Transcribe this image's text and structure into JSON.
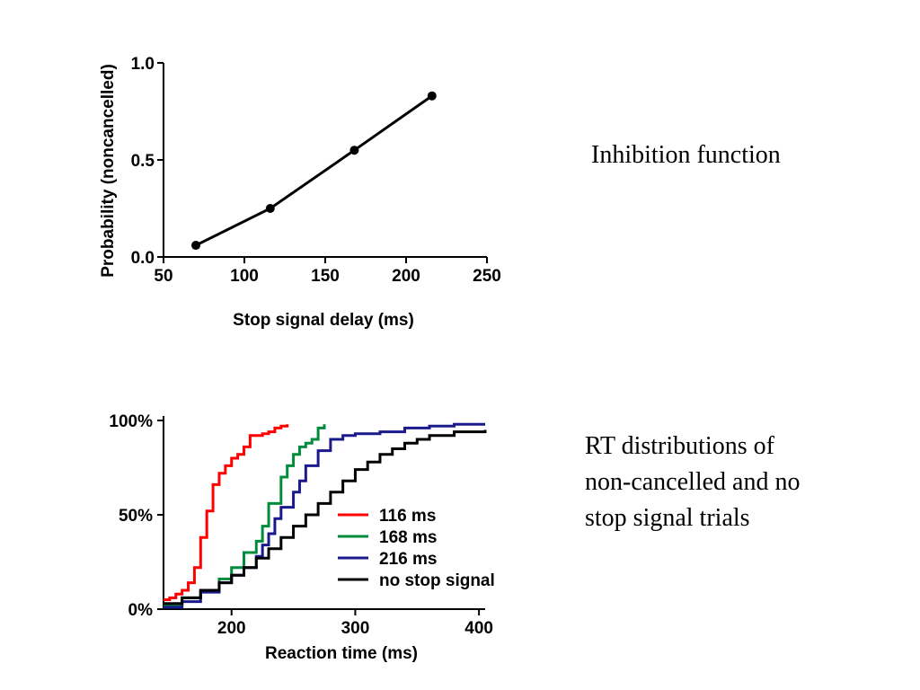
{
  "chart_data": [
    {
      "type": "line",
      "title": "",
      "xlabel": "Stop signal delay (ms)",
      "ylabel": "Probability (noncancelled)",
      "xlim": [
        50,
        250
      ],
      "ylim": [
        0,
        1
      ],
      "xticks": [
        "50",
        "100",
        "150",
        "200",
        "250"
      ],
      "yticks": [
        "0.0",
        "0.5",
        "1.0"
      ],
      "series": [
        {
          "x": [
            70,
            116,
            168,
            216
          ],
          "y": [
            0.06,
            0.25,
            0.55,
            0.83
          ]
        }
      ],
      "grid": false
    },
    {
      "type": "line",
      "title": "",
      "xlabel": "Reaction time (ms)",
      "ylabel": "",
      "xlim": [
        145,
        405
      ],
      "ylim": [
        0,
        100
      ],
      "xticks": [
        "200",
        "300",
        "400"
      ],
      "yticks": [
        "0%",
        "50%",
        "100%"
      ],
      "legend_position": "center-right",
      "series": [
        {
          "name": "116 ms",
          "color": "#ff0000",
          "x": [
            145,
            150,
            155,
            160,
            165,
            170,
            175,
            180,
            185,
            190,
            195,
            200,
            205,
            210,
            215,
            220,
            225,
            230,
            235,
            240,
            245
          ],
          "y": [
            5,
            6,
            8,
            10,
            14,
            22,
            38,
            52,
            66,
            72,
            76,
            80,
            82,
            86,
            92,
            92,
            93,
            94,
            96,
            97,
            98
          ]
        },
        {
          "name": "168 ms",
          "color": "#008c3c",
          "x": [
            145,
            160,
            175,
            190,
            200,
            210,
            220,
            225,
            230,
            240,
            245,
            250,
            255,
            260,
            265,
            270,
            275
          ],
          "y": [
            2,
            6,
            10,
            16,
            22,
            30,
            36,
            44,
            56,
            70,
            76,
            82,
            86,
            88,
            90,
            96,
            98
          ]
        },
        {
          "name": "216 ms",
          "color": "#1a1a8c",
          "x": [
            145,
            160,
            175,
            190,
            200,
            210,
            220,
            225,
            230,
            235,
            240,
            250,
            255,
            260,
            270,
            280,
            290,
            300,
            320,
            340,
            360,
            380,
            405
          ],
          "y": [
            1,
            4,
            9,
            14,
            18,
            22,
            28,
            34,
            40,
            48,
            54,
            62,
            68,
            76,
            84,
            90,
            92,
            93,
            94,
            96,
            97,
            98,
            98
          ]
        },
        {
          "name": "no stop  signal",
          "color": "#000000",
          "x": [
            145,
            160,
            175,
            190,
            200,
            210,
            220,
            230,
            240,
            250,
            260,
            270,
            280,
            290,
            300,
            310,
            320,
            330,
            340,
            350,
            360,
            380,
            405
          ],
          "y": [
            3,
            6,
            10,
            14,
            18,
            22,
            27,
            32,
            38,
            44,
            50,
            56,
            62,
            68,
            74,
            78,
            82,
            85,
            88,
            90,
            92,
            94,
            95
          ]
        }
      ],
      "grid": false
    }
  ],
  "captions": {
    "inhibition": "Inhibition function",
    "rt_line1": "RT distributions of",
    "rt_line2": "non-cancelled and no",
    "rt_line3": "stop signal trials"
  }
}
